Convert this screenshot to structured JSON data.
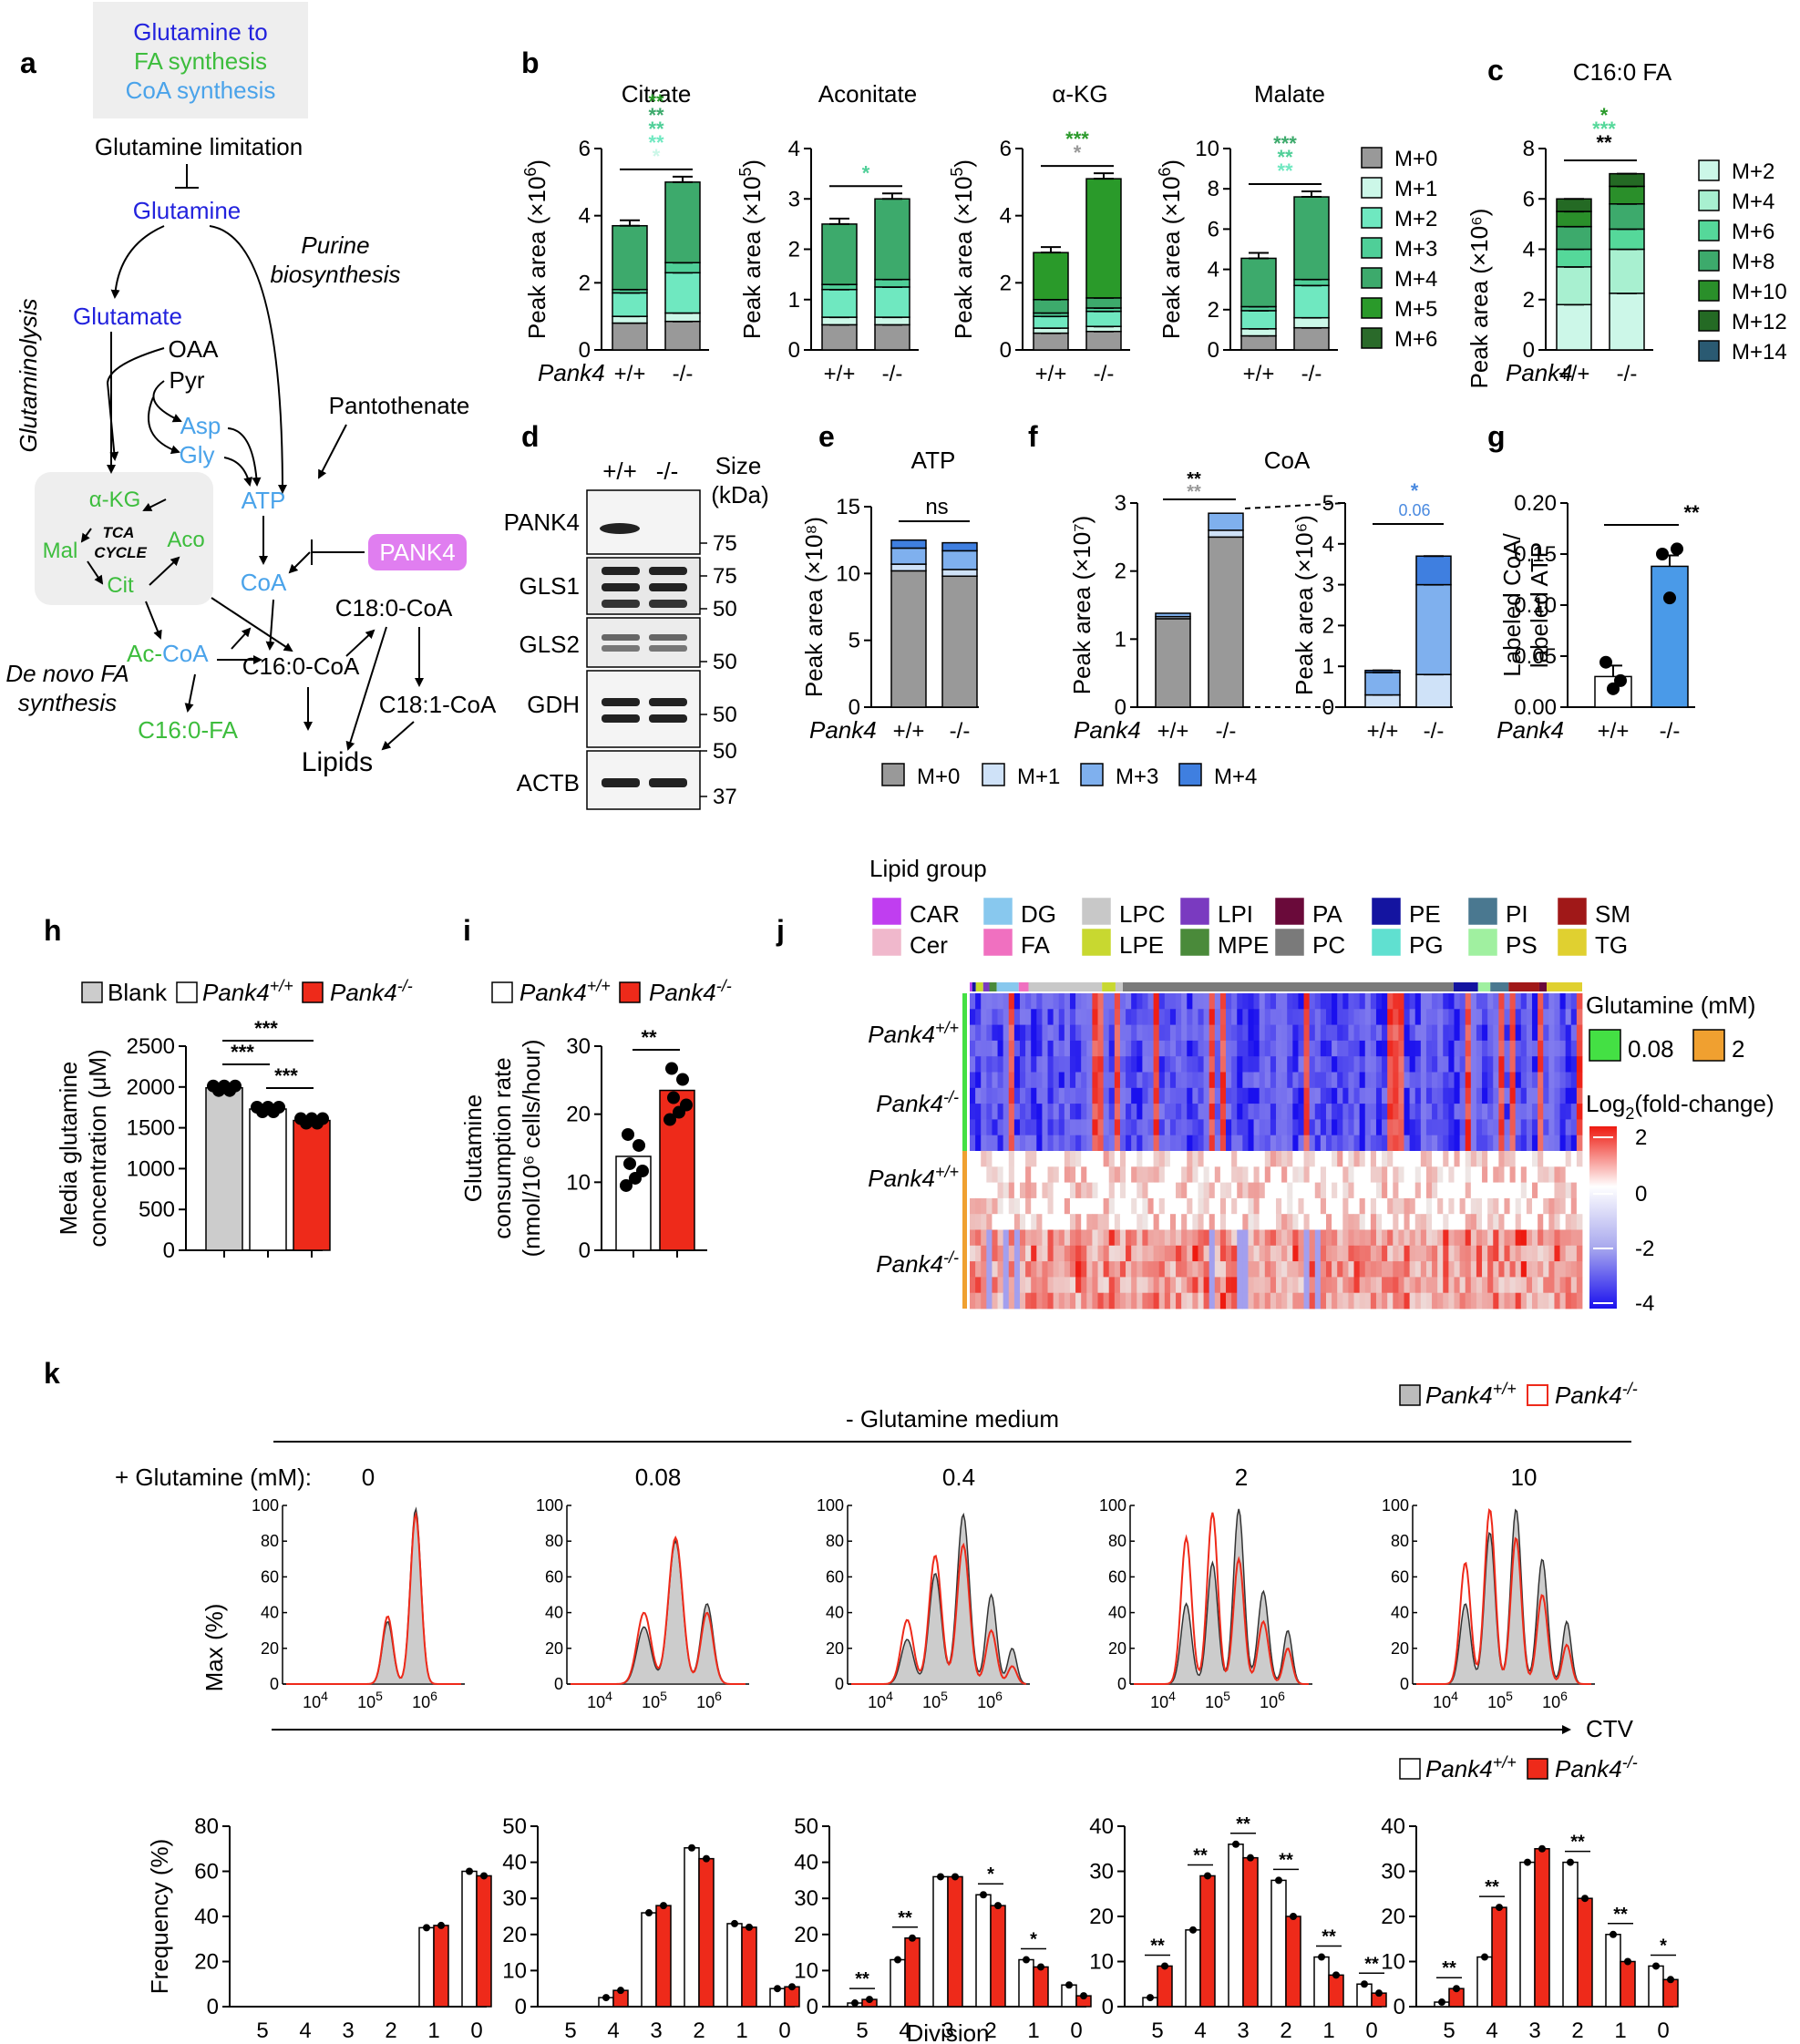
{
  "colors": {
    "cit_m0": "#999999",
    "cit_m1": "#ccf7e8",
    "cit_m2": "#6fe8c0",
    "cit_m3": "#4fcf98",
    "cit_m4": "#3daa6c",
    "cit_m5": "#2a9a2a",
    "cit_m6": "#2a6a2a",
    "fa_m2": "#ccf7e8",
    "fa_m4": "#a8f0d0",
    "fa_m6": "#55d89a",
    "fa_m8": "#3daa6c",
    "fa_m10": "#2a8f2a",
    "fa_m12": "#246a24",
    "fa_m14": "#2a5a72",
    "coa_m0": "#999999",
    "coa_m1": "#cfe2f8",
    "coa_m3": "#7fb0ee",
    "coa_m4": "#3f7fe0",
    "red": "#ee2a1a",
    "blue_text": "#2222dd",
    "green_text": "#3dbd3d",
    "light_blue_text": "#4aa3ea",
    "pank4_box": "#e07ef0"
  },
  "panel_a": {
    "legend": [
      "Glutamine to",
      "FA synthesis",
      "CoA synthesis"
    ],
    "nodes": {
      "glutamine_limitation": "Glutamine limitation",
      "glutamine": "Glutamine",
      "purine_1": "Purine",
      "purine_2": "biosynthesis",
      "glutamate": "Glutamate",
      "oaa": "OAA",
      "pyr": "Pyr",
      "glutaminolysis": "Glutaminolysis",
      "asp": "Asp",
      "gly": "Gly",
      "pantothenate": "Pantothenate",
      "akg": "α-KG",
      "tca_1": "TCA",
      "tca_2": "CYCLE",
      "mal": "Mal",
      "aco": "Aco",
      "cit": "Cit",
      "atp": "ATP",
      "coa": "CoA",
      "pank4": "PANK4",
      "c180coa": "C18:0-CoA",
      "ac": "Ac-",
      "accoa": "CoA",
      "c160coa": "C16:0-CoA",
      "c181coa": "C18:1-CoA",
      "denovo_1": "De novo FA",
      "denovo_2": "synthesis",
      "c160fa": "C16:0-FA",
      "lipids": "Lipids"
    }
  },
  "panel_b": {
    "ylabel": "Peak area",
    "genotype_label": "Pank4",
    "xcats": [
      "+/+",
      "-/-"
    ],
    "legend": [
      "M+0",
      "M+1",
      "M+2",
      "M+3",
      "M+4",
      "M+5",
      "M+6"
    ],
    "charts": [
      {
        "title": "Citrate",
        "unit_exp": "6",
        "ylim": [
          0,
          6
        ],
        "yticks": [
          0,
          2,
          4,
          6
        ],
        "sig": [
          "**",
          "**",
          "**",
          "**",
          "*"
        ],
        "sig_colors": [
          "#2a9a2a",
          "#3daa6c",
          "#4fcf98",
          "#6fe8c0",
          "#ccf7e8"
        ],
        "wt": [
          0.8,
          0.2,
          0.7,
          0.1,
          1.9
        ],
        "ko": [
          0.85,
          0.25,
          1.2,
          0.3,
          2.4
        ]
      },
      {
        "title": "Aconitate",
        "unit_exp": "5",
        "ylim": [
          0,
          4
        ],
        "yticks": [
          0,
          1,
          2,
          3,
          4
        ],
        "sig": [
          "*"
        ],
        "sig_colors": [
          "#4fcf98"
        ],
        "wt": [
          0.5,
          0.15,
          0.55,
          0.1,
          1.2
        ],
        "ko": [
          0.5,
          0.15,
          0.6,
          0.15,
          1.6
        ]
      },
      {
        "title": "α-KG",
        "unit_exp": "5",
        "ylim": [
          0,
          6
        ],
        "yticks": [
          0,
          2,
          4,
          6
        ],
        "sig": [
          "***",
          "*"
        ],
        "sig_colors": [
          "#2a9a2a",
          "#999999"
        ],
        "wt": [
          0.5,
          0.15,
          0.35,
          0.1,
          0.4,
          1.4
        ],
        "ko": [
          0.55,
          0.15,
          0.45,
          0.1,
          0.3,
          3.55
        ]
      },
      {
        "title": "Malate",
        "unit_exp": "6",
        "ylim": [
          0,
          10
        ],
        "yticks": [
          0,
          2,
          4,
          6,
          8,
          10
        ],
        "sig": [
          "***",
          "**",
          "**"
        ],
        "sig_colors": [
          "#3daa6c",
          "#4fcf98",
          "#6fe8c0"
        ],
        "wt": [
          0.7,
          0.35,
          0.9,
          0.2,
          2.4
        ],
        "ko": [
          1.1,
          0.5,
          1.6,
          0.3,
          4.1
        ]
      }
    ]
  },
  "panel_c": {
    "title": "C16:0 FA",
    "ylabel": "Peak area (×10⁶)",
    "ylim": [
      0,
      8
    ],
    "yticks": [
      0,
      2,
      4,
      6,
      8
    ],
    "xcats": [
      "+/+",
      "-/-"
    ],
    "sig": [
      "*",
      "***",
      "**"
    ],
    "sig_colors": [
      "#2a9a2a",
      "#55d89a",
      "#000000"
    ],
    "legend": [
      "M+2",
      "M+4",
      "M+6",
      "M+8",
      "M+10",
      "M+12",
      "M+14"
    ],
    "wt": [
      1.8,
      1.5,
      0.7,
      0.9,
      0.6,
      0.5
    ],
    "ko": [
      2.25,
      1.75,
      0.8,
      1.0,
      0.7,
      0.5
    ]
  },
  "panel_d": {
    "rows": [
      "PANK4",
      "GLS1",
      "GLS2",
      "GDH",
      "ACTB"
    ],
    "lanes": [
      "+/+",
      "-/-"
    ],
    "size_header": [
      "Size",
      "(kDa)"
    ],
    "markers": [
      "75",
      "75",
      "50",
      "50",
      "50",
      "50",
      "37"
    ]
  },
  "panel_e": {
    "title": "ATP",
    "ylabel": "Peak area (×10⁸)",
    "ylim": [
      0,
      15
    ],
    "yticks": [
      0,
      5,
      10,
      15
    ],
    "xcats": [
      "+/+",
      "-/-"
    ],
    "sig": "ns",
    "wt": [
      10.2,
      0.5,
      1.2,
      0.6
    ],
    "ko": [
      9.8,
      0.5,
      1.4,
      0.6
    ]
  },
  "panel_f": {
    "title": "CoA",
    "ylabel_main": "Peak area (×10⁷)",
    "ylabel_inset": "Peak area (×10⁶)",
    "ylim_main": [
      0,
      3
    ],
    "yticks_main": [
      0,
      1,
      2,
      3
    ],
    "ylim_inset": [
      0,
      5
    ],
    "yticks_inset": [
      0,
      1,
      2,
      3,
      4,
      5
    ],
    "xcats": [
      "+/+",
      "-/-"
    ],
    "sig_main": [
      "**",
      "**"
    ],
    "sig_inset": [
      "*",
      "0.06"
    ],
    "wt_main": [
      1.3,
      0.03,
      0.05
    ],
    "ko_main": [
      2.5,
      0.1,
      0.25
    ],
    "wt_inset": [
      0.3,
      0.55,
      0.05
    ],
    "ko_inset": [
      0.8,
      2.2,
      0.7
    ],
    "legend": [
      "M+0",
      "M+1",
      "M+3",
      "M+4"
    ]
  },
  "panel_g": {
    "ylabel": [
      "Labeled CoA/",
      "labeled ATP"
    ],
    "ylim": [
      0,
      0.2
    ],
    "yticks": [
      "0.00",
      "0.05",
      "0.10",
      "0.15",
      "0.20"
    ],
    "xcats": [
      "+/+",
      "-/-"
    ],
    "sig": "**",
    "values": [
      0.03,
      0.138
    ]
  },
  "panel_h": {
    "ylabel": [
      "Media glutamine",
      "concentration (μM)"
    ],
    "ylim": [
      0,
      2500
    ],
    "yticks": [
      0,
      500,
      1000,
      1500,
      2000,
      2500
    ],
    "legend": [
      "Blank",
      "Pank4",
      "Pank4"
    ],
    "legend_sup": [
      "+/+",
      "-/-"
    ],
    "values": [
      1990,
      1730,
      1590
    ],
    "sig": [
      "***",
      "***",
      "***"
    ]
  },
  "panel_i": {
    "ylabel": [
      "Glutamine",
      "consumption rate",
      "(nmol/10⁶ cells/hour)"
    ],
    "ylim": [
      0,
      30
    ],
    "yticks": [
      0,
      10,
      20,
      30
    ],
    "legend": [
      "Pank4",
      "Pank4"
    ],
    "legend_sup": [
      "+/+",
      "-/-"
    ],
    "values": [
      13.8,
      23.5
    ],
    "sig": "**"
  },
  "panel_j": {
    "legend_title": "Lipid group",
    "groups": [
      {
        "name": "CAR",
        "color": "#c03ef0"
      },
      {
        "name": "DG",
        "color": "#88c8ee"
      },
      {
        "name": "LPC",
        "color": "#c8c8c8"
      },
      {
        "name": "LPI",
        "color": "#7a3ac0"
      },
      {
        "name": "PA",
        "color": "#6a0a3a"
      },
      {
        "name": "PE",
        "color": "#1414a0"
      },
      {
        "name": "PI",
        "color": "#4a7890"
      },
      {
        "name": "SM",
        "color": "#a01818"
      },
      {
        "name": "Cer",
        "color": "#f0b8cc"
      },
      {
        "name": "FA",
        "color": "#f070c0"
      },
      {
        "name": "LPE",
        "color": "#c8d830"
      },
      {
        "name": "MPE",
        "color": "#4a8a3a"
      },
      {
        "name": "PC",
        "color": "#7a7a7a"
      },
      {
        "name": "PG",
        "color": "#60e0d0"
      },
      {
        "name": "PS",
        "color": "#a0f0a0"
      },
      {
        "name": "TG",
        "color": "#e0d030"
      }
    ],
    "row_labels": [
      "Pank4",
      "Pank4",
      "Pank4",
      "Pank4"
    ],
    "row_sups": [
      "+/+",
      "-/-",
      "+/+",
      "-/-"
    ],
    "glut_title": "Glutamine (mM)",
    "glut_levels": [
      {
        "name": "0.08",
        "color": "#44e044"
      },
      {
        "name": "2",
        "color": "#f0a030"
      }
    ],
    "scale_title": "Log",
    "scale_title_sub": "2",
    "scale_title_tail": "(fold-change)",
    "scale_ticks": [
      "2",
      "0",
      "-2",
      "-4"
    ]
  },
  "panel_k": {
    "legend_top": [
      "Pank4",
      "Pank4"
    ],
    "legend_sup": [
      "+/+",
      "-/-"
    ],
    "medium": "- Glutamine medium",
    "gln_label": "+ Glutamine (mM):",
    "concs": [
      "0",
      "0.08",
      "0.4",
      "2",
      "10"
    ],
    "hist_ylabel": "Max (%)",
    "hist_yticks": [
      0,
      20,
      40,
      60,
      80,
      100
    ],
    "hist_xlabel": "CTV",
    "xtick_base": "10",
    "xtick_exps": [
      "4",
      "5",
      "6"
    ],
    "freq_ylabel": "Frequency (%)",
    "freq_xlabel": "Division",
    "divisions": [
      "5",
      "4",
      "3",
      "2",
      "1",
      "0"
    ],
    "freq": [
      {
        "ylim": [
          0,
          80
        ],
        "yticks": [
          0,
          20,
          40,
          60,
          80
        ],
        "wt": [
          null,
          null,
          null,
          null,
          35,
          60
        ],
        "ko": [
          null,
          null,
          null,
          null,
          36,
          58
        ],
        "sig": [
          null,
          null,
          null,
          null,
          null,
          null
        ]
      },
      {
        "ylim": [
          0,
          50
        ],
        "yticks": [
          0,
          10,
          20,
          30,
          40,
          50
        ],
        "wt": [
          null,
          2.5,
          26,
          44,
          23,
          5
        ],
        "ko": [
          null,
          4.5,
          28,
          41,
          22,
          5.5
        ],
        "sig": [
          null,
          null,
          null,
          null,
          null,
          null
        ]
      },
      {
        "ylim": [
          0,
          50
        ],
        "yticks": [
          0,
          10,
          20,
          30,
          40,
          50
        ],
        "wt": [
          1,
          13,
          36,
          31,
          13,
          6
        ],
        "ko": [
          2,
          19,
          36,
          28,
          11,
          3
        ],
        "sig": [
          "**",
          "**",
          null,
          "*",
          "*",
          null
        ]
      },
      {
        "ylim": [
          0,
          40
        ],
        "yticks": [
          0,
          10,
          20,
          30,
          40
        ],
        "wt": [
          2,
          17,
          36,
          28,
          11,
          5
        ],
        "ko": [
          9,
          29,
          33,
          20,
          7,
          3
        ],
        "sig": [
          "**",
          "**",
          "**",
          "**",
          "**",
          "**"
        ]
      },
      {
        "ylim": [
          0,
          40
        ],
        "yticks": [
          0,
          10,
          20,
          30,
          40
        ],
        "wt": [
          1,
          11,
          32,
          32,
          16,
          9
        ],
        "ko": [
          4,
          22,
          35,
          24,
          10,
          6
        ],
        "sig": [
          "**",
          "**",
          null,
          "**",
          "**",
          "*"
        ]
      }
    ]
  }
}
